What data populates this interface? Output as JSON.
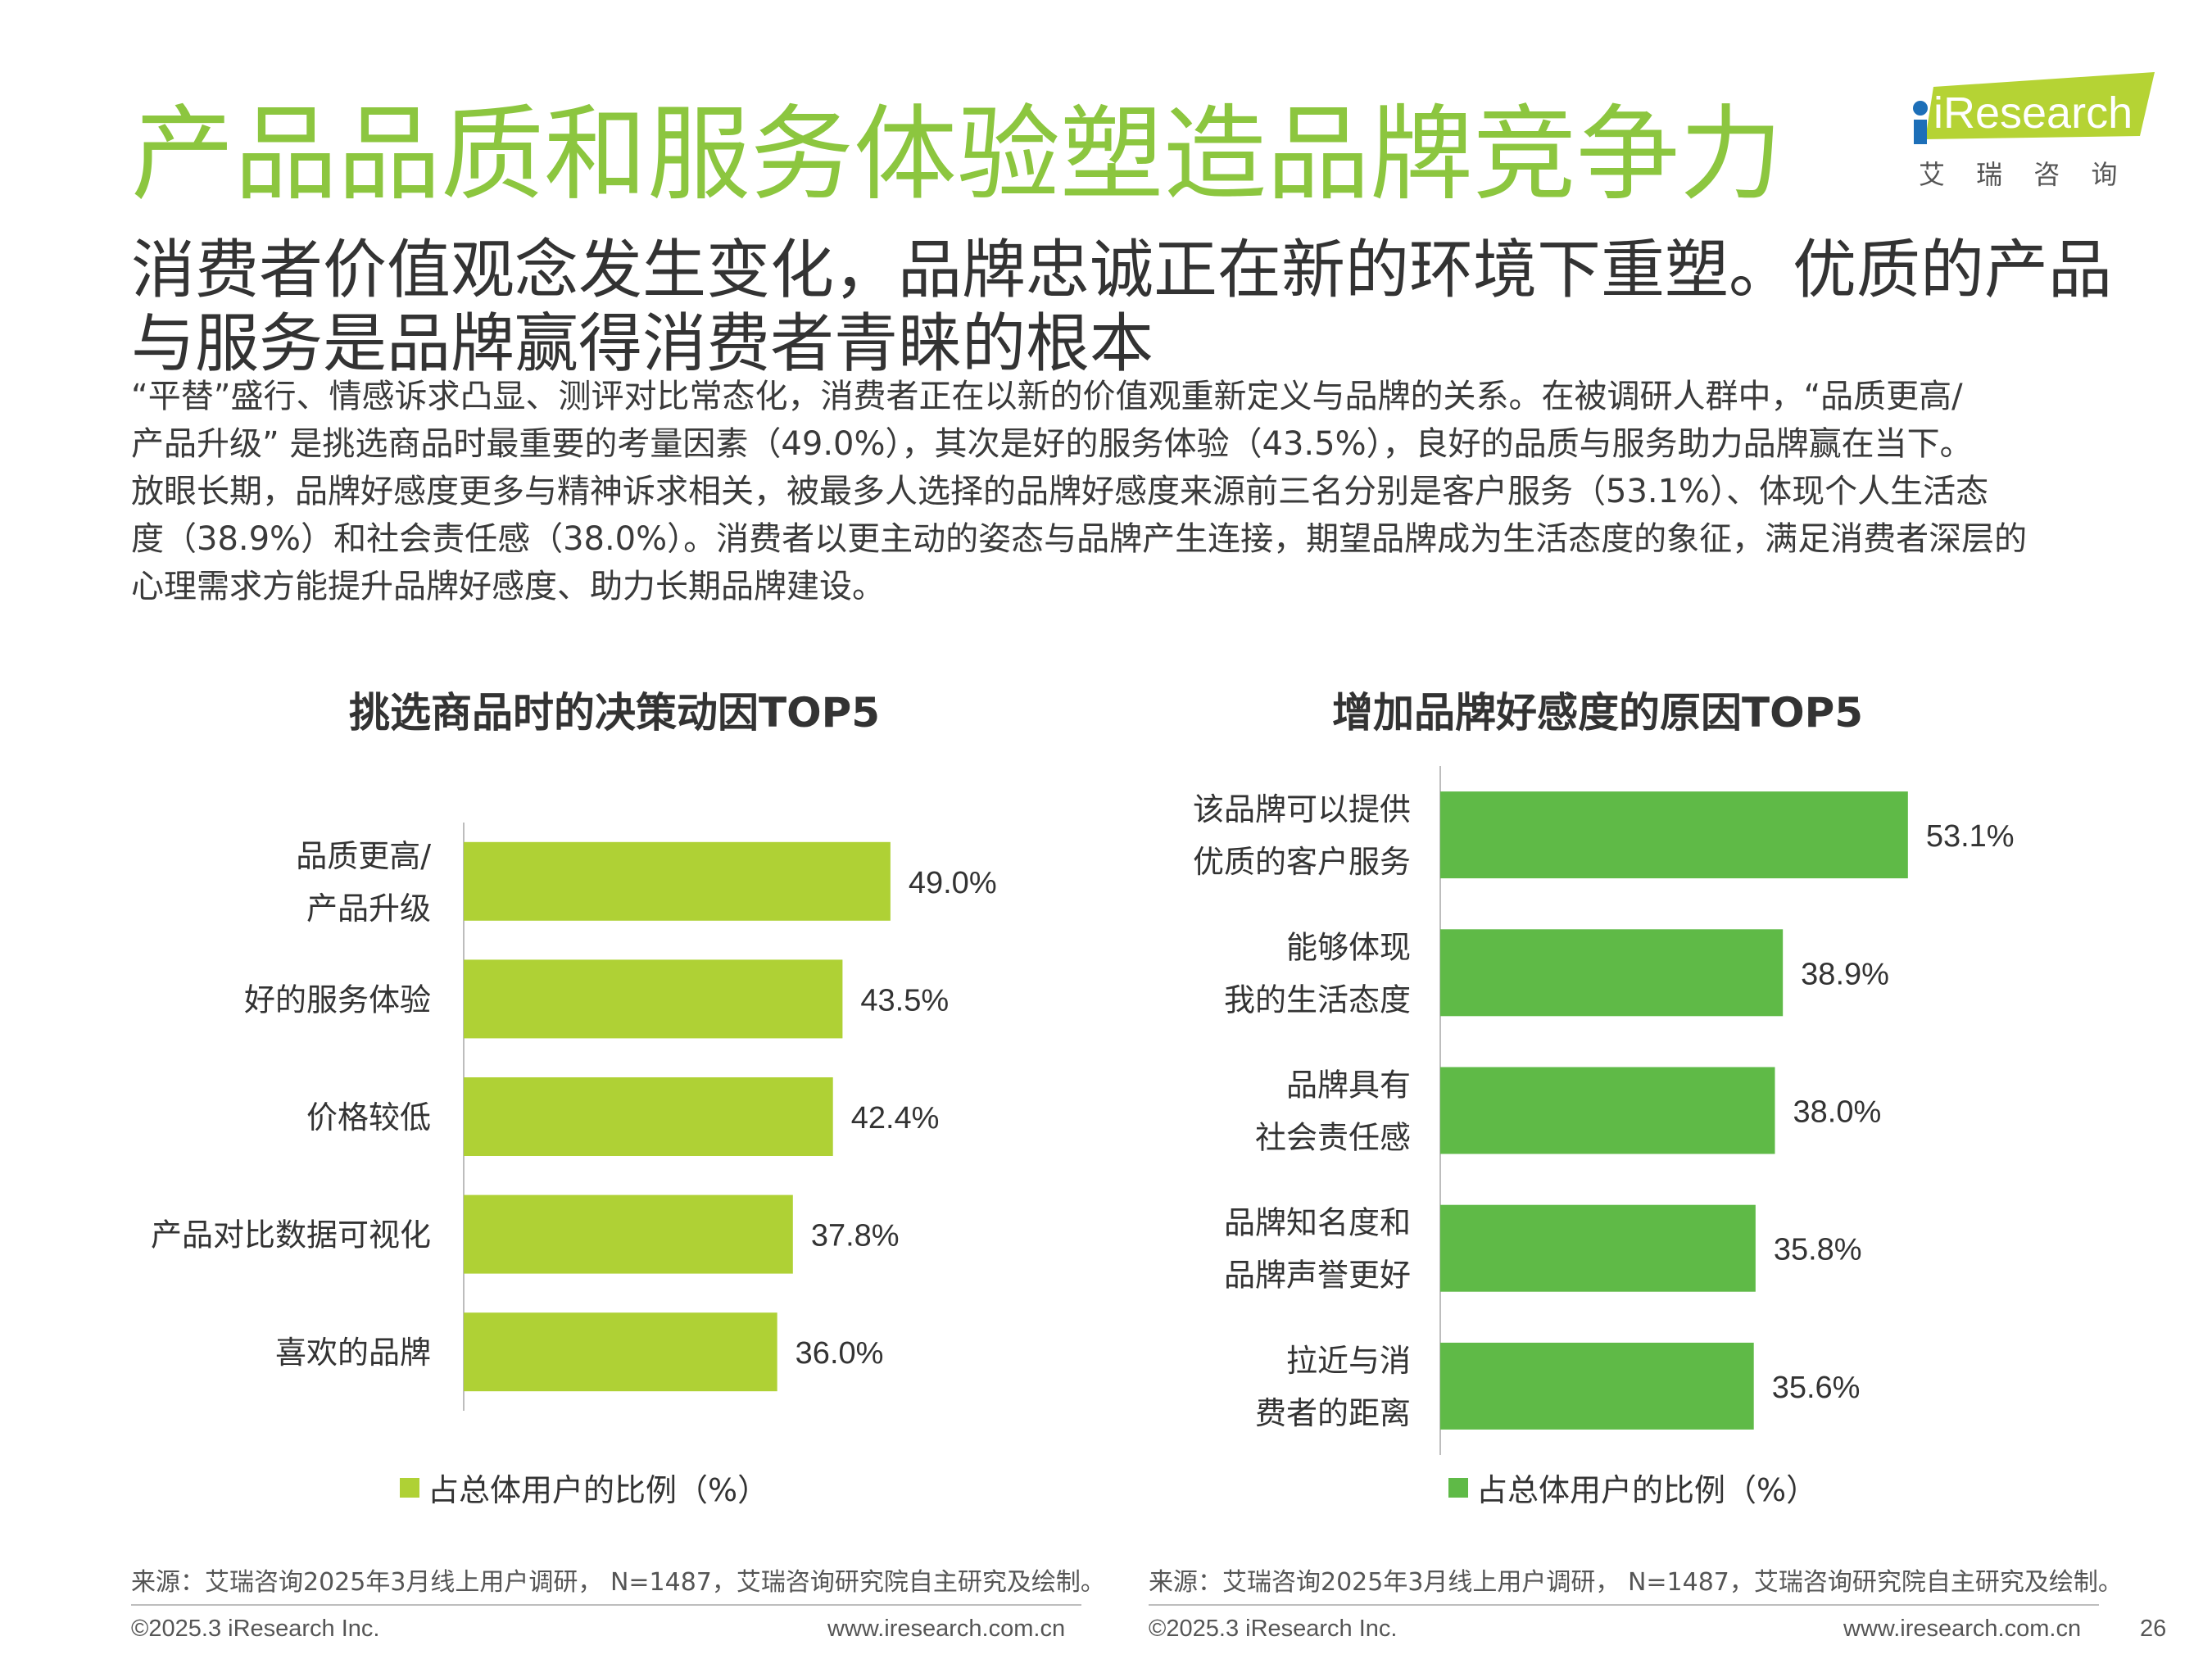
{
  "title": "产品品质和服务体验塑造品牌竞争力",
  "logo": {
    "brand": "iResearch",
    "cn": "艾 瑞 咨 询"
  },
  "subtitle": [
    "消费者价值观念发生变化，品牌忠诚正在新的环境下重塑。优质的产品",
    "与服务是品牌赢得消费者青睐的根本"
  ],
  "body_lines": [
    "“平替”盛行、情感诉求凸显、测评对比常态化，消费者正在以新的价值观重新定义与品牌的关系。在被调研人群中，“品质更高/",
    "产品升级” 是挑选商品时最重要的考量因素（49.0%），其次是好的服务体验（43.5%），良好的品质与服务助力品牌赢在当下。",
    "放眼长期，品牌好感度更多与精神诉求相关，被最多人选择的品牌好感度来源前三名分别是客户服务（53.1%）、体现个人生活态",
    "度（38.9%）和社会责任感（38.0%）。消费者以更主动的姿态与品牌产生连接，期望品牌成为生活态度的象征，满足消费者深层的",
    "心理需求方能提升品牌好感度、助力长期品牌建设。"
  ],
  "chart_data": [
    {
      "type": "bar",
      "orientation": "horizontal",
      "title": "挑选商品时的决策动因TOP5",
      "categories": [
        [
          "品质更高/",
          "产品升级"
        ],
        [
          "好的服务体验"
        ],
        [
          "价格较低"
        ],
        [
          "产品对比数据可视化"
        ],
        [
          "喜欢的品牌"
        ]
      ],
      "series": [
        {
          "name": "占总体用户的比例（%）",
          "values": [
            49.0,
            43.5,
            42.4,
            37.8,
            36.0
          ]
        }
      ],
      "labels": [
        "49.0%",
        "43.5%",
        "42.4%",
        "37.8%",
        "36.0%"
      ],
      "color": "#afd135",
      "legend": "bottom",
      "grid": false
    },
    {
      "type": "bar",
      "orientation": "horizontal",
      "title": "增加品牌好感度的原因TOP5",
      "categories": [
        [
          "该品牌可以提供",
          "优质的客户服务"
        ],
        [
          "能够体现",
          "我的生活态度"
        ],
        [
          "品牌具有",
          "社会责任感"
        ],
        [
          "品牌知名度和",
          "品牌声誉更好"
        ],
        [
          "拉近与消",
          "费者的距离"
        ]
      ],
      "series": [
        {
          "name": "占总体用户的比例（%）",
          "values": [
            53.1,
            38.9,
            38.0,
            35.8,
            35.6
          ]
        }
      ],
      "labels": [
        "53.1%",
        "38.9%",
        "38.0%",
        "35.8%",
        "35.6%"
      ],
      "color": "#5fba47",
      "legend": "bottom",
      "grid": false
    }
  ],
  "source": "来源：艾瑞咨询2025年3月线上用户调研， N=1487，艾瑞咨询研究院自主研究及绘制。",
  "footer": {
    "copyright": "©2025.3 iResearch Inc.",
    "url": "www.iresearch.com.cn",
    "page": "26"
  }
}
